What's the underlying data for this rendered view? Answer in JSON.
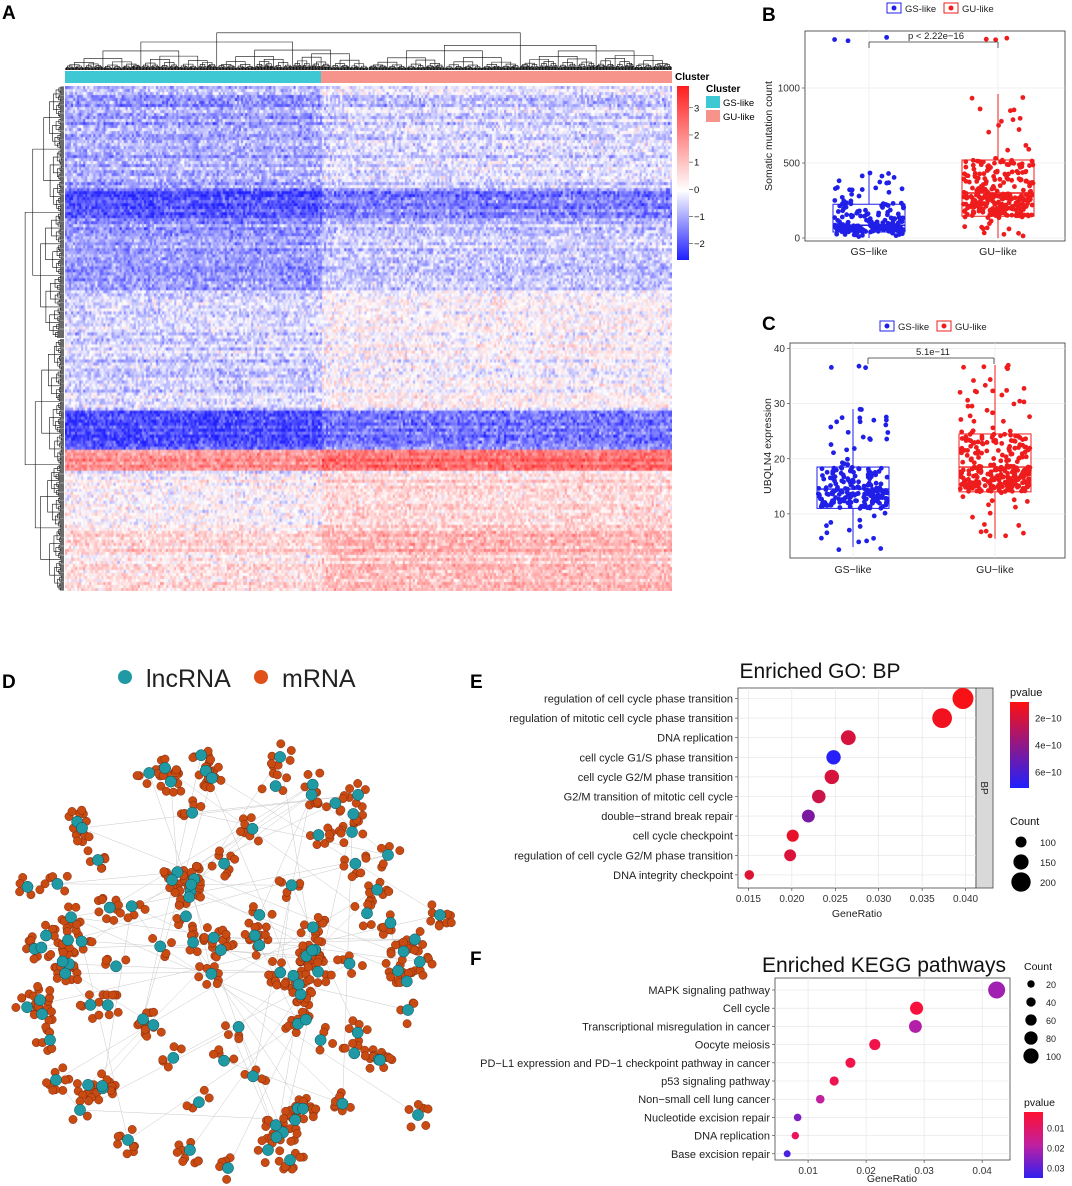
{
  "panels": {
    "A": "A",
    "B": "B",
    "C": "C",
    "D": "D",
    "E": "E",
    "F": "F"
  },
  "colors": {
    "gs": "#1f1fe8",
    "gu": "#ee1c1c",
    "gs_bar": "#3ec8d3",
    "gu_bar": "#f6938b",
    "lnc": "#1f9aa5",
    "mrna": "#c94b12",
    "heat_low": "#1e1eff",
    "heat_mid": "#ffffff",
    "heat_high": "#ff1e1e"
  },
  "heatmap": {
    "title_top": "Cluster",
    "legend_title": "Cluster",
    "clusters": [
      "GS-like",
      "GU-like"
    ],
    "cluster_fraction": [
      0.42,
      0.58
    ],
    "colorbar_ticks": [
      "3",
      "2",
      "1",
      "0",
      "−1",
      "−2"
    ],
    "colorbar_values": [
      3,
      2,
      1,
      0,
      -1,
      -2
    ],
    "color_range": [
      -2.6,
      3.8
    ]
  },
  "chart_data": [
    {
      "id": "B",
      "type": "box",
      "legend": [
        "GS-like",
        "GU-like"
      ],
      "categories": [
        "GS−like",
        "GU−like"
      ],
      "ylabel": "Somatic mutation count",
      "xlabel": "",
      "yticks": [
        "0",
        "500",
        "1000"
      ],
      "ytick_values": [
        0,
        500,
        1000
      ],
      "ylim": [
        -20,
        1380
      ],
      "pvalue": "p < 2.22e−16",
      "boxes": [
        {
          "q1": 40,
          "median": 85,
          "q3": 225,
          "wlow": 0,
          "whigh": 440,
          "n": 220,
          "max": 1340
        },
        {
          "q1": 145,
          "median": 300,
          "q3": 520,
          "wlow": 0,
          "whigh": 960,
          "n": 300,
          "max": 1340
        }
      ]
    },
    {
      "id": "C",
      "type": "box",
      "legend": [
        "GS-like",
        "GU-like"
      ],
      "categories": [
        "GS−like",
        "GU−like"
      ],
      "ylabel": "UBQLN4 expression",
      "xlabel": "",
      "yticks": [
        "10",
        "20",
        "30",
        "40"
      ],
      "ytick_values": [
        10,
        20,
        30,
        40
      ],
      "ylim": [
        2,
        41
      ],
      "pvalue": "5.1e−11",
      "boxes": [
        {
          "q1": 11,
          "median": 14.5,
          "q3": 18.5,
          "wlow": 4,
          "whigh": 29,
          "n": 220,
          "min": 3.5,
          "max": 37
        },
        {
          "q1": 14,
          "median": 18.5,
          "q3": 24.5,
          "wlow": 5.5,
          "whigh": 37,
          "n": 300,
          "min": 5.5,
          "max": 37
        }
      ]
    },
    {
      "id": "D",
      "type": "network",
      "legend": [
        "lncRNA",
        "mRNA"
      ]
    },
    {
      "id": "E",
      "type": "scatter",
      "title": "Enriched GO: BP",
      "xlabel": "GeneRatio",
      "ylabel": "",
      "facet": "BP",
      "xticks": [
        "0.015",
        "0.020",
        "0.025",
        "0.030",
        "0.035",
        "0.040"
      ],
      "xtick_values": [
        0.015,
        0.02,
        0.025,
        0.03,
        0.035,
        0.04
      ],
      "xlim": [
        0.0138,
        0.0412
      ],
      "terms": [
        "regulation of cell cycle phase transition",
        "regulation of mitotic cell cycle phase transition",
        "DNA replication",
        "cell cycle G1/S phase transition",
        "cell cycle G2/M phase transition",
        "G2/M transition of mitotic cell cycle",
        "double−strand break repair",
        "cell cycle checkpoint",
        "regulation of cell cycle G2/M phase transition",
        "DNA integrity checkpoint"
      ],
      "x": [
        0.0397,
        0.0373,
        0.0265,
        0.0248,
        0.0246,
        0.0231,
        0.0219,
        0.0201,
        0.0198,
        0.0151
      ],
      "count": [
        220,
        205,
        145,
        140,
        140,
        130,
        122,
        112,
        110,
        82
      ],
      "pvalue": [
        1e-10,
        1.2e-10,
        2e-10,
        7e-10,
        2e-10,
        2.3e-10,
        4.6e-10,
        1.5e-10,
        1.9e-10,
        1.8e-10
      ],
      "pv_range": [
        8e-11,
        7.2e-10
      ],
      "legend_pvalue_title": "pvalue",
      "legend_pvalue_ticks": [
        "2e−10",
        "4e−10",
        "6e−10"
      ],
      "legend_pvalue_values": [
        2e-10,
        4e-10,
        6e-10
      ],
      "legend_count_title": "Count",
      "legend_count_values": [
        100,
        150,
        200
      ],
      "legend_count_labels": [
        "100",
        "150",
        "200"
      ]
    },
    {
      "id": "F",
      "type": "scatter",
      "title": "Enriched KEGG pathways",
      "xlabel": "GeneRatio",
      "ylabel": "",
      "xticks": [
        "0.01",
        "0.02",
        "0.03",
        "0.04"
      ],
      "xtick_values": [
        0.01,
        0.02,
        0.03,
        0.04
      ],
      "xlim": [
        0.0043,
        0.0448
      ],
      "terms": [
        "MAPK signaling pathway",
        "Cell cycle",
        "Transcriptional misregulation in cancer",
        "Oocyte meiosis",
        "PD−L1 expression and PD−1 checkpoint pathway in cancer",
        "p53 signaling pathway",
        "Non−small cell lung cancer",
        "Nucleotide excision repair",
        "DNA replication",
        "Base excision repair"
      ],
      "x": [
        0.0425,
        0.0287,
        0.0285,
        0.0215,
        0.0173,
        0.0145,
        0.0121,
        0.0082,
        0.0078,
        0.0064
      ],
      "count": [
        118,
        78,
        76,
        58,
        47,
        38,
        32,
        22,
        21,
        16
      ],
      "pvalue": [
        0.022,
        0.004,
        0.02,
        0.006,
        0.006,
        0.007,
        0.018,
        0.026,
        0.008,
        0.032
      ],
      "pv_range": [
        0.002,
        0.035
      ],
      "legend_count_title": "Count",
      "legend_count_values": [
        20,
        40,
        60,
        80,
        100
      ],
      "legend_count_labels": [
        "20",
        "40",
        "60",
        "80",
        "100"
      ],
      "legend_pvalue_title": "pvalue",
      "legend_pvalue_ticks": [
        "0.01",
        "0.02",
        "0.03"
      ],
      "legend_pvalue_values": [
        0.01,
        0.02,
        0.03
      ]
    }
  ]
}
